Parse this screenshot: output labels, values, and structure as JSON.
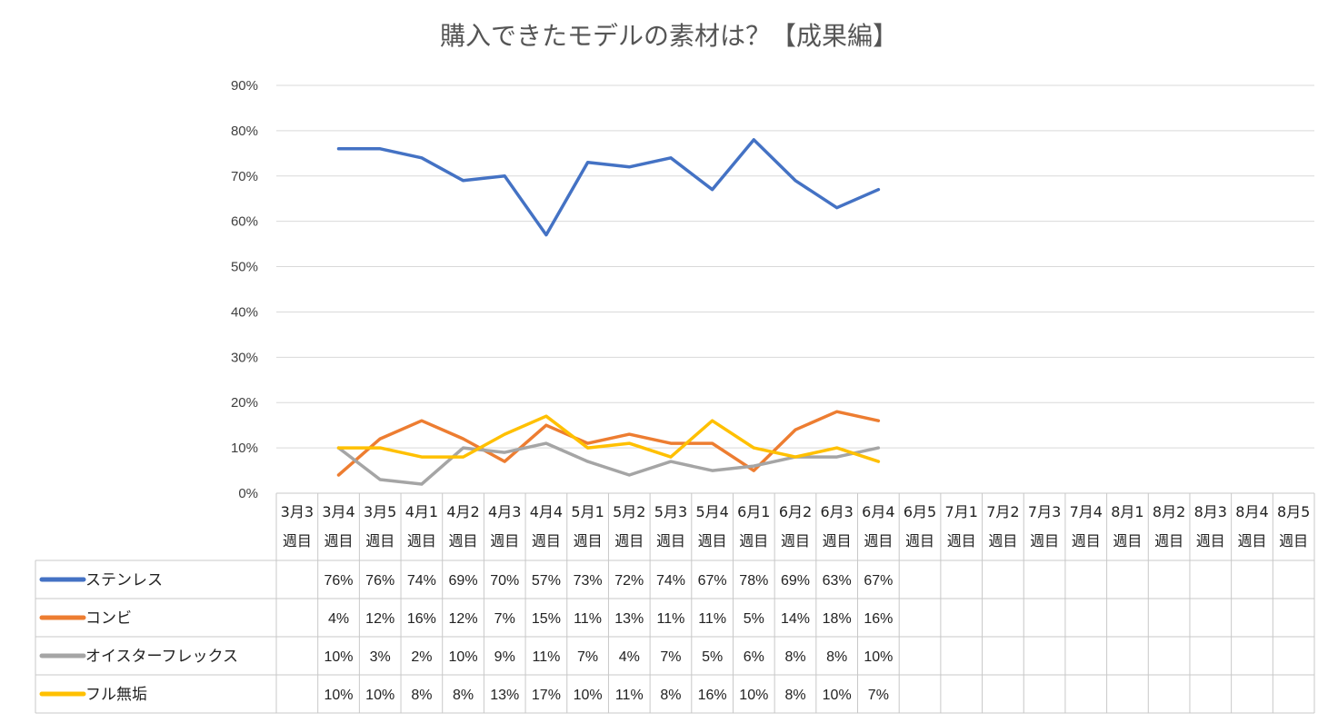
{
  "chart_data": {
    "type": "line",
    "title": "購入できたモデルの素材は？【成果編】",
    "xlabel": "",
    "ylabel": "",
    "ylim": [
      0,
      90
    ],
    "yticks": [
      "0%",
      "10%",
      "20%",
      "30%",
      "40%",
      "50%",
      "60%",
      "70%",
      "80%",
      "90%"
    ],
    "grid": true,
    "legend": "data-table-left",
    "categories": [
      [
        "3月3",
        "週目"
      ],
      [
        "3月4",
        "週目"
      ],
      [
        "3月5",
        "週目"
      ],
      [
        "4月1",
        "週目"
      ],
      [
        "4月2",
        "週目"
      ],
      [
        "4月3",
        "週目"
      ],
      [
        "4月4",
        "週目"
      ],
      [
        "5月1",
        "週目"
      ],
      [
        "5月2",
        "週目"
      ],
      [
        "5月3",
        "週目"
      ],
      [
        "5月4",
        "週目"
      ],
      [
        "6月1",
        "週目"
      ],
      [
        "6月2",
        "週目"
      ],
      [
        "6月3",
        "週目"
      ],
      [
        "6月4",
        "週目"
      ],
      [
        "6月5",
        "週目"
      ],
      [
        "7月1",
        "週目"
      ],
      [
        "7月2",
        "週目"
      ],
      [
        "7月3",
        "週目"
      ],
      [
        "7月4",
        "週目"
      ],
      [
        "8月1",
        "週目"
      ],
      [
        "8月2",
        "週目"
      ],
      [
        "8月3",
        "週目"
      ],
      [
        "8月4",
        "週目"
      ],
      [
        "8月5",
        "週目"
      ]
    ],
    "series": [
      {
        "name": "ステンレス",
        "color": "#4472c4",
        "values": [
          null,
          76,
          76,
          74,
          69,
          70,
          57,
          73,
          72,
          74,
          67,
          78,
          69,
          63,
          67,
          null,
          null,
          null,
          null,
          null,
          null,
          null,
          null,
          null,
          null
        ]
      },
      {
        "name": "コンビ",
        "color": "#ed7d31",
        "values": [
          null,
          4,
          12,
          16,
          12,
          7,
          15,
          11,
          13,
          11,
          11,
          5,
          14,
          18,
          16,
          null,
          null,
          null,
          null,
          null,
          null,
          null,
          null,
          null,
          null
        ]
      },
      {
        "name": "オイスターフレックス",
        "color": "#a5a5a5",
        "values": [
          null,
          10,
          3,
          2,
          10,
          9,
          11,
          7,
          4,
          7,
          5,
          6,
          8,
          8,
          10,
          null,
          null,
          null,
          null,
          null,
          null,
          null,
          null,
          null,
          null
        ]
      },
      {
        "name": "フル無垢",
        "color": "#ffc000",
        "values": [
          null,
          10,
          10,
          8,
          8,
          13,
          17,
          10,
          11,
          8,
          16,
          10,
          8,
          10,
          7,
          null,
          null,
          null,
          null,
          null,
          null,
          null,
          null,
          null,
          null
        ]
      }
    ]
  }
}
